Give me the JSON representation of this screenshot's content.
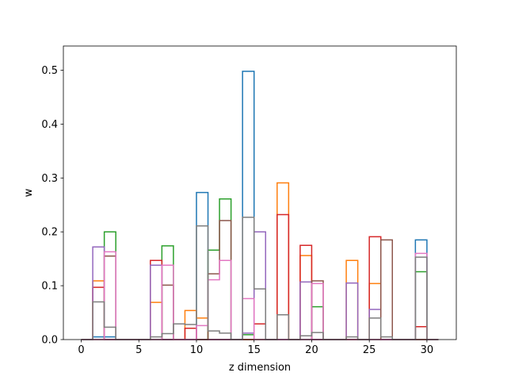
{
  "chart_data": {
    "type": "step-histogram",
    "xlabel": "z dimension",
    "ylabel": "w",
    "xlim": [
      -1.55,
      32.55
    ],
    "ylim": [
      0,
      0.545
    ],
    "xticks": [
      0,
      5,
      10,
      15,
      20,
      25,
      30
    ],
    "xtick_labels": [
      "0",
      "5",
      "10",
      "15",
      "20",
      "25",
      "30"
    ],
    "yticks": [
      0.0,
      0.1,
      0.2,
      0.3,
      0.4,
      0.5
    ],
    "ytick_labels": [
      "0.0",
      "0.1",
      "0.2",
      "0.3",
      "0.4",
      "0.5"
    ],
    "bin_edges": [
      0,
      1,
      2,
      3,
      4,
      5,
      6,
      7,
      8,
      9,
      10,
      11,
      12,
      13,
      14,
      15,
      16,
      17,
      18,
      19,
      20,
      21,
      22,
      23,
      24,
      25,
      26,
      27,
      28,
      29,
      30,
      31
    ],
    "grid": false,
    "legend": "none",
    "series": [
      {
        "color": "#1f77b4",
        "values": [
          0,
          0.005,
          0.005,
          0,
          0,
          0,
          0,
          0,
          0,
          0,
          0.273,
          0,
          0,
          0,
          0.498,
          0,
          0,
          0,
          0,
          0,
          0,
          0,
          0,
          0,
          0,
          0,
          0,
          0,
          0,
          0.185,
          0
        ]
      },
      {
        "color": "#ff7f0e",
        "values": [
          0,
          0.109,
          0,
          0,
          0,
          0,
          0.069,
          0,
          0,
          0.054,
          0.04,
          0,
          0,
          0,
          0,
          0,
          0,
          0.291,
          0,
          0.156,
          0,
          0,
          0,
          0.147,
          0,
          0.104,
          0,
          0,
          0,
          0,
          0
        ]
      },
      {
        "color": "#2ca02c",
        "values": [
          0,
          0,
          0.2,
          0,
          0,
          0,
          0,
          0.174,
          0,
          0,
          0,
          0.166,
          0.261,
          0,
          0.009,
          0,
          0,
          0,
          0,
          0,
          0.061,
          0,
          0,
          0,
          0,
          0,
          0,
          0,
          0,
          0.126,
          0
        ]
      },
      {
        "color": "#d62728",
        "values": [
          0,
          0.097,
          0,
          0,
          0,
          0,
          0.147,
          0,
          0,
          0.021,
          0,
          0,
          0,
          0,
          0,
          0.029,
          0,
          0.232,
          0,
          0.175,
          0,
          0,
          0,
          0,
          0,
          0.191,
          0,
          0,
          0,
          0.024,
          0
        ]
      },
      {
        "color": "#9467bd",
        "values": [
          0,
          0.172,
          0,
          0,
          0,
          0,
          0.138,
          0,
          0,
          0,
          0,
          0,
          0,
          0,
          0.012,
          0.2,
          0,
          0,
          0,
          0.107,
          0,
          0,
          0,
          0.105,
          0,
          0.056,
          0,
          0,
          0,
          0,
          0
        ]
      },
      {
        "color": "#8c564b",
        "values": [
          0,
          0,
          0.155,
          0,
          0,
          0,
          0,
          0.101,
          0,
          0,
          0,
          0.122,
          0.221,
          0,
          0,
          0,
          0,
          0,
          0,
          0,
          0.109,
          0,
          0,
          0,
          0,
          0,
          0.185,
          0,
          0,
          0,
          0
        ]
      },
      {
        "color": "#e377c2",
        "values": [
          0,
          0,
          0.163,
          0,
          0,
          0,
          0,
          0.138,
          0,
          0,
          0.026,
          0.111,
          0.147,
          0,
          0.076,
          0,
          0,
          0,
          0,
          0,
          0.104,
          0,
          0,
          0,
          0,
          0,
          0,
          0,
          0,
          0.16,
          0
        ]
      },
      {
        "color": "#7f7f7f",
        "values": [
          0,
          0.07,
          0.023,
          0,
          0,
          0,
          0.005,
          0.011,
          0.029,
          0.028,
          0.211,
          0.016,
          0.012,
          0,
          0.227,
          0.094,
          0,
          0.046,
          0,
          0.007,
          0.013,
          0,
          0,
          0.005,
          0,
          0.04,
          0.005,
          0,
          0,
          0.153,
          0
        ]
      }
    ]
  }
}
